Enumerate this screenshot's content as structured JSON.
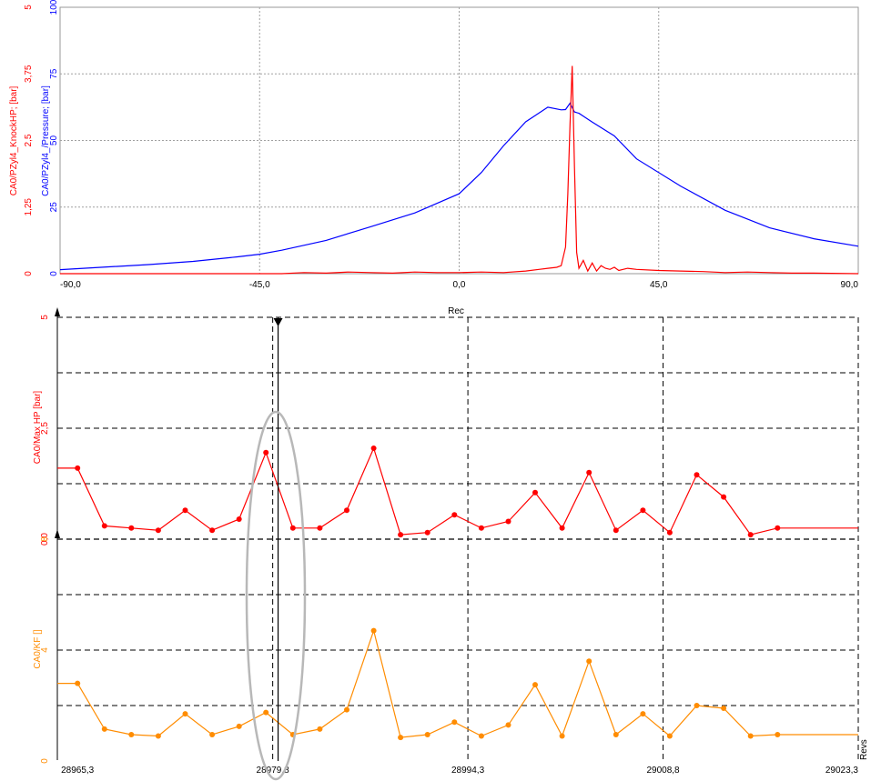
{
  "chart_data": [
    {
      "type": "line",
      "xlim": [
        -90,
        90
      ],
      "x_ticks": [
        "-90,0",
        "-45,0",
        "0,0",
        "45,0",
        "90,0"
      ],
      "grid": true,
      "axes": [
        {
          "label": "CA0/PZyl4_KnockHP; [bar]",
          "ticks": [
            "0",
            "1,25",
            "2,5",
            "3,75",
            "5"
          ],
          "range": [
            0,
            5
          ],
          "color": "#ff0000"
        },
        {
          "label": "CA0/PZyl4_/Pressure; [bar]",
          "ticks": [
            "0",
            "25",
            "50",
            "75",
            "100"
          ],
          "range": [
            0,
            100
          ],
          "color": "#0000ff"
        }
      ],
      "series": [
        {
          "name": "CA0/PZyl4_/Pressure; [bar]",
          "color": "#0000ff",
          "axis": 1,
          "x": [
            -90,
            -70,
            -60,
            -50,
            -45,
            -40,
            -30,
            -20,
            -10,
            0,
            5,
            10,
            15,
            20,
            23,
            24,
            25,
            26,
            27,
            30,
            35,
            40,
            50,
            60,
            70,
            80,
            90
          ],
          "y": [
            1.5,
            3.4,
            4.6,
            6.3,
            7.3,
            8.8,
            12.5,
            17.6,
            22.8,
            30,
            38,
            48,
            57,
            62.5,
            61.5,
            61.6,
            64,
            60.7,
            60.2,
            56.9,
            51.7,
            43.1,
            32.8,
            23.8,
            17.2,
            13.1,
            10.3
          ]
        },
        {
          "name": "CA0/PZyl4_KnockHP; [bar]",
          "color": "#ff0000",
          "axis": 0,
          "x": [
            -90,
            -40,
            -35,
            -30,
            -25,
            -20,
            -15,
            -10,
            -5,
            0,
            5,
            10,
            15,
            18,
            20,
            22,
            23,
            24,
            24.5,
            25,
            25.5,
            26,
            26.5,
            27,
            28,
            29,
            30,
            31,
            32,
            33,
            34,
            35,
            36,
            38,
            40,
            45,
            50,
            55,
            60,
            65,
            70,
            75,
            80,
            90
          ],
          "y": [
            0,
            0,
            0.02,
            0.01,
            0.03,
            0.02,
            0.01,
            0.03,
            0.02,
            0.02,
            0.03,
            0.02,
            0.05,
            0.08,
            0.1,
            0.12,
            0.15,
            0.5,
            1.5,
            2.8,
            3.9,
            2.0,
            0.4,
            0.1,
            0.25,
            0.05,
            0.2,
            0.05,
            0.15,
            0.1,
            0.08,
            0.12,
            0.06,
            0.1,
            0.08,
            0.06,
            0.05,
            0.04,
            0.02,
            0.03,
            0.02,
            0.01,
            0.01,
            0
          ]
        }
      ]
    },
    {
      "type": "line",
      "title": "Rec",
      "xlabel": "Revs",
      "xlim": [
        28963.8,
        29023.3
      ],
      "x_ticks": [
        "28965,3",
        "28979,8",
        "28994,3",
        "29008,8",
        "29023,3"
      ],
      "cursor_x": 28980.2,
      "grid": true,
      "markers": true,
      "panels": [
        {
          "label": "CA0/Max HP [bar]",
          "ticks": [
            "0,0",
            "2,5",
            "5"
          ],
          "range": [
            0,
            5
          ],
          "color": "#ff0000"
        },
        {
          "label": "CA0/KF []",
          "ticks": [
            "0",
            "4",
            "8"
          ],
          "range": [
            0,
            8
          ],
          "color": "#ff8c00"
        }
      ],
      "series": [
        {
          "name": "CA0/Max HP [bar]",
          "color": "#ff0000",
          "panel": 0,
          "x_start": 28965.3,
          "x_step": 2,
          "values": [
            1.6,
            0.3,
            0.25,
            0.2,
            0.65,
            0.2,
            0.45,
            1.95,
            0.25,
            0.25,
            0.65,
            2.05,
            0.1,
            0.15,
            0.55,
            0.25,
            0.4,
            1.05,
            0.25,
            1.5,
            0.2,
            0.65,
            0.15,
            1.45,
            0.95,
            0.1,
            0.25
          ],
          "end_hold": 0.25
        },
        {
          "name": "CA0/KF []",
          "color": "#ff8c00",
          "panel": 1,
          "x_start": 28965.3,
          "x_step": 2,
          "values": [
            2.8,
            1.15,
            0.95,
            0.9,
            1.7,
            0.95,
            1.25,
            1.75,
            0.95,
            1.15,
            1.85,
            4.7,
            0.85,
            0.95,
            1.4,
            0.9,
            1.3,
            2.75,
            0.9,
            3.6,
            0.95,
            1.7,
            0.9,
            2.0,
            1.9,
            0.9,
            0.95
          ],
          "end_hold": 0.95
        }
      ]
    }
  ]
}
